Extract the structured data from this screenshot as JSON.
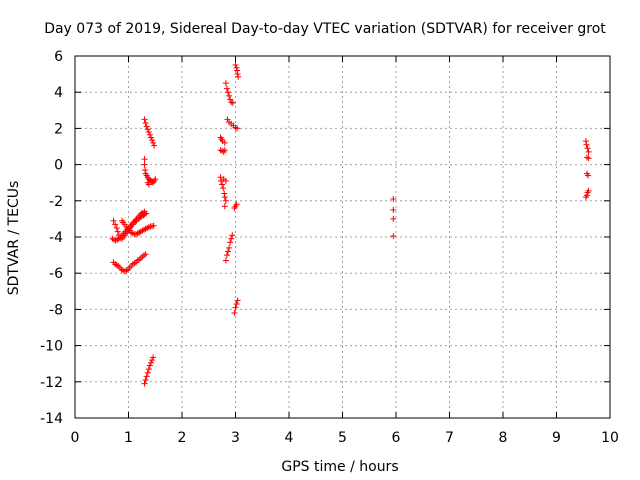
{
  "chart_data": {
    "type": "scatter",
    "title": "Day 073 of 2019, Sidereal Day-to-day VTEC variation (SDTVAR) for receiver grot",
    "xlabel": "GPS time / hours",
    "ylabel": "SDTVAR / TECUs",
    "xlim": [
      0,
      10
    ],
    "ylim": [
      -14,
      6
    ],
    "xticks": [
      0,
      1,
      2,
      3,
      4,
      5,
      6,
      7,
      8,
      9,
      10
    ],
    "yticks": [
      -14,
      -12,
      -10,
      -8,
      -6,
      -4,
      -2,
      0,
      2,
      4,
      6
    ],
    "xtick_labels": [
      "0",
      "1",
      "2",
      "3",
      "4",
      "5",
      "6",
      "7",
      "8",
      "9",
      "10"
    ],
    "ytick_labels": [
      "-14",
      "-12",
      "-10",
      "-8",
      "-6",
      "-4",
      "-2",
      "0",
      "2",
      "4",
      "6"
    ],
    "grid": true,
    "marker": "+",
    "color": "#ff0000",
    "series": [
      {
        "points": [
          [
            0.72,
            -3.1
          ],
          [
            0.75,
            -3.3
          ],
          [
            0.78,
            -3.5
          ],
          [
            0.8,
            -3.7
          ],
          [
            0.82,
            -3.9
          ],
          [
            0.85,
            -4.05
          ],
          [
            0.88,
            -4.1
          ],
          [
            0.9,
            -4.0
          ],
          [
            0.93,
            -3.9
          ],
          [
            0.95,
            -3.8
          ],
          [
            0.98,
            -3.7
          ],
          [
            1.0,
            -3.6
          ],
          [
            1.03,
            -3.5
          ],
          [
            1.05,
            -3.4
          ],
          [
            1.08,
            -3.3
          ],
          [
            1.1,
            -3.2
          ],
          [
            1.13,
            -3.15
          ],
          [
            1.15,
            -3.1
          ],
          [
            1.18,
            -3.0
          ],
          [
            1.2,
            -2.95
          ],
          [
            1.23,
            -2.9
          ],
          [
            1.25,
            -2.85
          ],
          [
            1.28,
            -2.8
          ],
          [
            1.3,
            -2.75
          ],
          [
            1.33,
            -2.7
          ],
          [
            0.7,
            -4.1
          ],
          [
            0.73,
            -4.15
          ],
          [
            0.76,
            -4.2
          ],
          [
            0.79,
            -4.15
          ],
          [
            0.82,
            -4.1
          ],
          [
            0.85,
            -4.0
          ],
          [
            0.88,
            -3.9
          ],
          [
            0.91,
            -3.8
          ],
          [
            0.94,
            -3.7
          ],
          [
            0.97,
            -3.6
          ],
          [
            1.0,
            -3.5
          ],
          [
            1.03,
            -3.4
          ],
          [
            1.06,
            -3.3
          ],
          [
            1.09,
            -3.2
          ],
          [
            1.12,
            -3.1
          ],
          [
            1.15,
            -3.0
          ],
          [
            1.18,
            -2.9
          ],
          [
            1.21,
            -2.8
          ],
          [
            1.24,
            -2.7
          ],
          [
            1.27,
            -2.65
          ],
          [
            1.3,
            -2.6
          ],
          [
            0.88,
            -3.1
          ],
          [
            0.9,
            -3.2
          ],
          [
            0.93,
            -3.3
          ],
          [
            0.96,
            -3.45
          ],
          [
            0.99,
            -3.55
          ],
          [
            1.02,
            -3.65
          ],
          [
            1.05,
            -3.75
          ],
          [
            1.08,
            -3.8
          ],
          [
            1.11,
            -3.85
          ],
          [
            1.14,
            -3.85
          ],
          [
            1.17,
            -3.8
          ],
          [
            1.2,
            -3.75
          ],
          [
            1.23,
            -3.7
          ],
          [
            1.26,
            -3.65
          ],
          [
            1.29,
            -3.6
          ],
          [
            1.32,
            -3.55
          ],
          [
            1.35,
            -3.5
          ],
          [
            1.38,
            -3.45
          ],
          [
            1.41,
            -3.42
          ],
          [
            1.44,
            -3.4
          ],
          [
            1.47,
            -3.38
          ],
          [
            0.72,
            -5.4
          ],
          [
            0.75,
            -5.5
          ],
          [
            0.78,
            -5.55
          ],
          [
            0.81,
            -5.6
          ],
          [
            0.84,
            -5.7
          ],
          [
            0.87,
            -5.8
          ],
          [
            0.9,
            -5.85
          ],
          [
            0.93,
            -5.9
          ],
          [
            0.96,
            -5.85
          ],
          [
            0.99,
            -5.8
          ],
          [
            1.02,
            -5.7
          ],
          [
            1.05,
            -5.6
          ],
          [
            1.08,
            -5.5
          ],
          [
            1.11,
            -5.45
          ],
          [
            1.14,
            -5.4
          ],
          [
            1.17,
            -5.3
          ],
          [
            1.2,
            -5.25
          ],
          [
            1.23,
            -5.15
          ],
          [
            1.26,
            -5.1
          ],
          [
            1.29,
            -5.0
          ],
          [
            1.32,
            -4.95
          ],
          [
            1.3,
            2.5
          ],
          [
            1.32,
            2.3
          ],
          [
            1.34,
            2.1
          ],
          [
            1.36,
            1.95
          ],
          [
            1.38,
            1.8
          ],
          [
            1.4,
            1.65
          ],
          [
            1.42,
            1.5
          ],
          [
            1.44,
            1.35
          ],
          [
            1.46,
            1.2
          ],
          [
            1.48,
            1.05
          ],
          [
            1.3,
            0.3
          ],
          [
            1.3,
            0.0
          ],
          [
            1.31,
            -0.3
          ],
          [
            1.32,
            -0.5
          ],
          [
            1.34,
            -0.6
          ],
          [
            1.36,
            -0.7
          ],
          [
            1.38,
            -0.8
          ],
          [
            1.4,
            -0.85
          ],
          [
            1.42,
            -0.9
          ],
          [
            1.44,
            -0.95
          ],
          [
            1.46,
            -1.0
          ],
          [
            1.48,
            -0.9
          ],
          [
            1.5,
            -0.8
          ],
          [
            1.36,
            -1.0
          ],
          [
            1.38,
            -1.1
          ],
          [
            1.3,
            -12.1
          ],
          [
            1.32,
            -11.9
          ],
          [
            1.34,
            -11.7
          ],
          [
            1.36,
            -11.5
          ],
          [
            1.38,
            -11.3
          ],
          [
            1.4,
            -11.1
          ],
          [
            1.42,
            -10.95
          ],
          [
            1.44,
            -10.8
          ],
          [
            1.46,
            -10.65
          ]
        ]
      },
      {
        "points": [
          [
            2.72,
            1.5
          ],
          [
            2.74,
            1.4
          ],
          [
            2.76,
            1.3
          ],
          [
            2.8,
            1.2
          ],
          [
            2.72,
            0.8
          ],
          [
            2.75,
            0.75
          ],
          [
            2.78,
            0.7
          ],
          [
            2.8,
            0.8
          ],
          [
            2.72,
            -0.7
          ],
          [
            2.73,
            -0.9
          ],
          [
            2.75,
            -1.1
          ],
          [
            2.77,
            -1.3
          ],
          [
            2.79,
            -1.6
          ],
          [
            2.8,
            -1.8
          ],
          [
            2.82,
            -2.0
          ],
          [
            2.8,
            -2.3
          ],
          [
            2.78,
            -0.8
          ],
          [
            2.82,
            -0.9
          ],
          [
            2.82,
            -5.3
          ],
          [
            2.84,
            -5.0
          ],
          [
            2.86,
            -4.8
          ],
          [
            2.88,
            -4.6
          ],
          [
            2.9,
            -4.3
          ],
          [
            2.92,
            -4.1
          ],
          [
            2.94,
            -3.9
          ],
          [
            2.82,
            4.5
          ],
          [
            2.84,
            4.2
          ],
          [
            2.86,
            4.0
          ],
          [
            2.88,
            3.8
          ],
          [
            2.9,
            3.6
          ],
          [
            2.92,
            3.45
          ],
          [
            2.95,
            3.4
          ],
          [
            2.85,
            2.5
          ],
          [
            2.88,
            2.35
          ],
          [
            2.92,
            2.25
          ],
          [
            2.96,
            2.15
          ],
          [
            3.0,
            2.05
          ],
          [
            3.03,
            2.0
          ],
          [
            3.0,
            5.5
          ],
          [
            3.02,
            5.35
          ],
          [
            3.03,
            5.2
          ],
          [
            3.04,
            5.0
          ],
          [
            3.05,
            4.85
          ],
          [
            2.98,
            -2.4
          ],
          [
            3.0,
            -2.3
          ],
          [
            3.02,
            -2.2
          ],
          [
            2.98,
            -8.2
          ],
          [
            3.0,
            -7.9
          ],
          [
            3.02,
            -7.7
          ],
          [
            3.04,
            -7.5
          ]
        ]
      },
      {
        "points": [
          [
            5.95,
            -1.9
          ],
          [
            5.95,
            -2.5
          ],
          [
            5.95,
            -3.0
          ],
          [
            5.95,
            -3.95
          ]
        ]
      },
      {
        "points": [
          [
            9.55,
            1.3
          ],
          [
            9.56,
            1.1
          ],
          [
            9.58,
            0.9
          ],
          [
            9.6,
            0.7
          ],
          [
            9.57,
            0.4
          ],
          [
            9.6,
            0.35
          ],
          [
            9.57,
            -0.5
          ],
          [
            9.59,
            -0.6
          ],
          [
            9.55,
            -1.8
          ],
          [
            9.57,
            -1.7
          ],
          [
            9.58,
            -1.55
          ],
          [
            9.6,
            -1.45
          ]
        ]
      }
    ]
  }
}
